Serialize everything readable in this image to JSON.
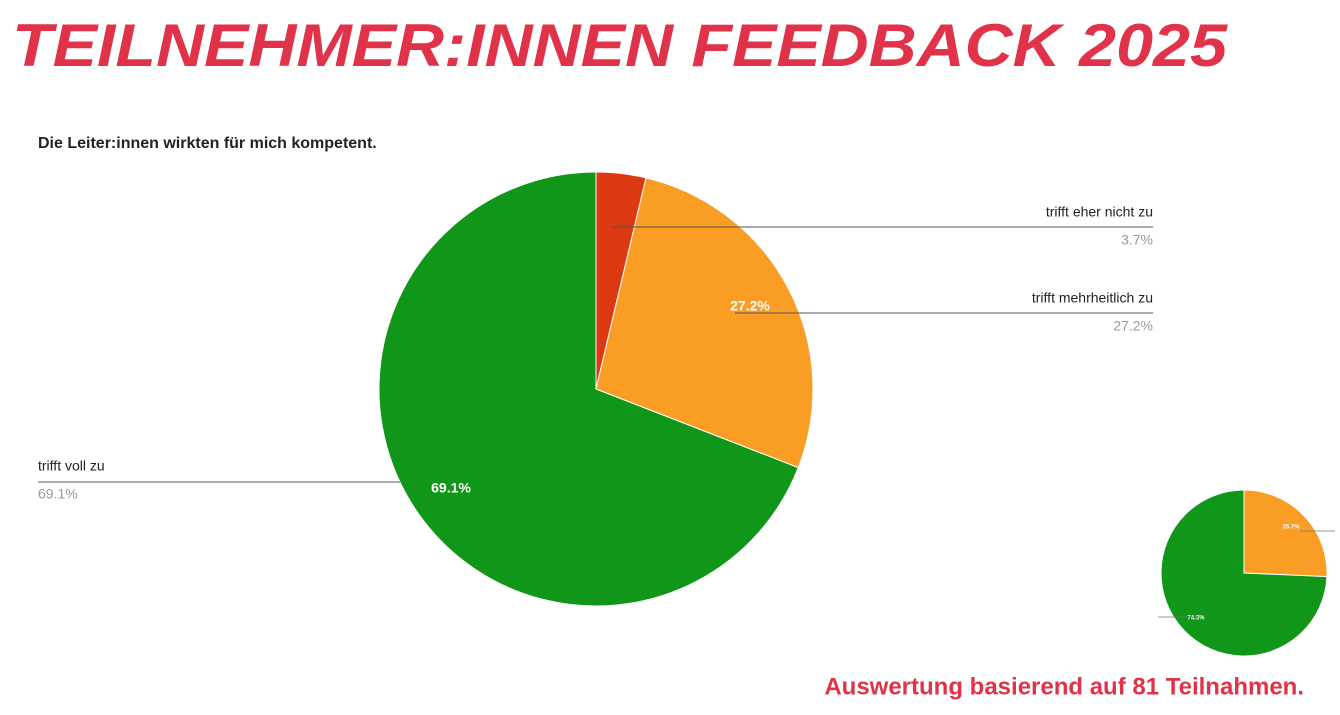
{
  "page": {
    "title": "TEILNEHMER:INNEN FEEDBACK 2025",
    "note": "Auswertung basierend auf 81 Teilnahmen."
  },
  "chart_data": [
    {
      "type": "pie",
      "title": "Die Leiter:innen wirkten für mich kompetent.",
      "categories": [
        "trifft eher nicht zu",
        "trifft mehrheitlich zu",
        "trifft voll zu"
      ],
      "values": [
        3.7,
        27.2,
        69.1
      ],
      "value_labels": [
        "3.7%",
        "27.2%",
        "69.1%"
      ],
      "colors": [
        "#dc3912",
        "#f99d25",
        "#109618"
      ]
    },
    {
      "type": "pie",
      "values": [
        25.7,
        74.3
      ],
      "value_labels": [
        "25.7%",
        "74.3%"
      ],
      "colors": [
        "#f99d25",
        "#109618"
      ]
    }
  ]
}
